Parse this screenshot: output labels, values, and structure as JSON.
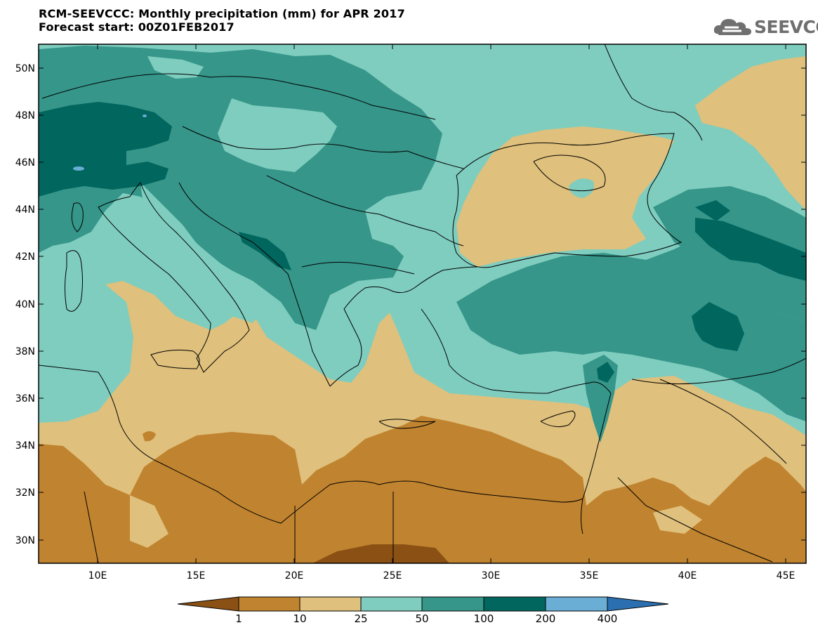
{
  "header": {
    "title_line1": "RCM-SEEVCCC: Monthly precipitation (mm) for APR 2017",
    "title_line2": "Forecast start: 00Z01FEB2017"
  },
  "logo": {
    "text": "SEEVCCC",
    "icon": "cloud-logo-icon"
  },
  "map": {
    "lon_range": [
      7,
      46
    ],
    "lat_range": [
      29,
      51
    ],
    "lat_ticks": [
      "30N",
      "32N",
      "34N",
      "36N",
      "38N",
      "40N",
      "42N",
      "44N",
      "46N",
      "48N",
      "50N"
    ],
    "lon_ticks": [
      "10E",
      "15E",
      "20E",
      "25E",
      "30E",
      "35E",
      "40E",
      "45E"
    ]
  },
  "colorbar": {
    "labels": [
      "1",
      "10",
      "25",
      "50",
      "100",
      "200",
      "400"
    ],
    "colors": [
      "#8b5014",
      "#c0832f",
      "#dfc07c",
      "#7fcdbf",
      "#36968a",
      "#01665e",
      "#6aaed6",
      "#2b6fb0"
    ]
  }
}
